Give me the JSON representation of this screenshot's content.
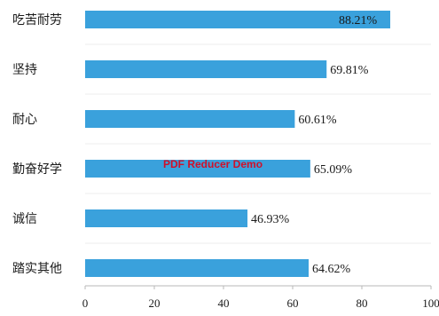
{
  "chart_data": {
    "type": "bar",
    "orientation": "horizontal",
    "categories": [
      "吃苦耐劳",
      "坚持",
      "耐心",
      "勤奋好学",
      "诚信",
      "踏实其他"
    ],
    "values": [
      88.21,
      69.81,
      60.61,
      65.09,
      46.93,
      64.62
    ],
    "value_labels": [
      "88.21%",
      "69.81%",
      "60.61%",
      "65.09%",
      "46.93%",
      "64.62%"
    ],
    "xlim": [
      0,
      100
    ],
    "x_ticks": [
      0,
      20,
      40,
      60,
      80,
      100
    ],
    "bar_color": "#3aa1dc",
    "grid": false,
    "title": "",
    "xlabel": "",
    "ylabel": ""
  },
  "watermark": "PDF Reducer Demo"
}
